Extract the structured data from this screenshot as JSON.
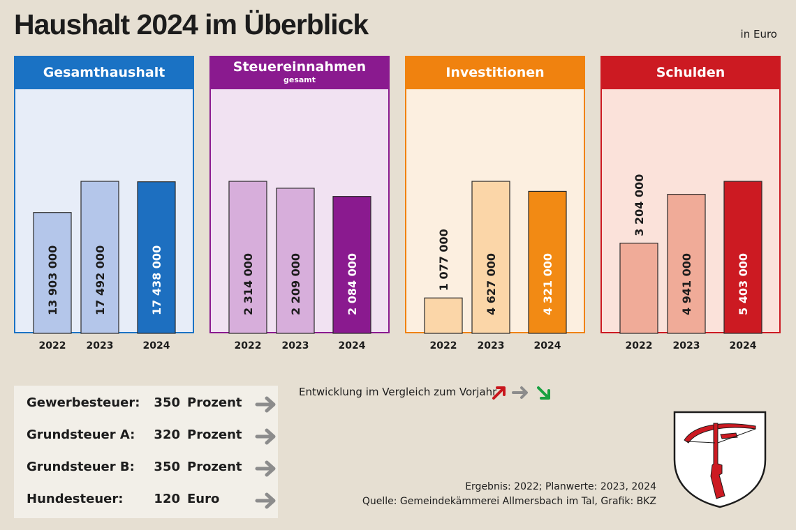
{
  "header": {
    "title": "Haushalt 2024 im Überblick",
    "unit": "in Euro"
  },
  "chart_data": [
    {
      "type": "bar",
      "title": "Gesamthaushalt",
      "subtitle": "",
      "categories": [
        "2022",
        "2023",
        "2024"
      ],
      "values": [
        13903000,
        17492000,
        17438000
      ],
      "value_labels": [
        "13 903 000",
        "17 492 000",
        "17 438 000"
      ],
      "colors": {
        "header": "#1a72c4",
        "bg": "#e7edf8",
        "bar_light": "#b4c6ea",
        "bar_dark": "#1d6fc0"
      }
    },
    {
      "type": "bar",
      "title": "Steuereinnahmen",
      "subtitle": "gesamt",
      "categories": [
        "2022",
        "2023",
        "2024"
      ],
      "values": [
        2314000,
        2209000,
        2084000
      ],
      "value_labels": [
        "2 314 000",
        "2 209 000",
        "2 084 000"
      ],
      "colors": {
        "header": "#8a1a8f",
        "bg": "#f1e2f2",
        "bar_light": "#d7aedb",
        "bar_dark": "#8a1a8f"
      }
    },
    {
      "type": "bar",
      "title": "Investitionen",
      "subtitle": "",
      "categories": [
        "2022",
        "2023",
        "2024"
      ],
      "values": [
        1077000,
        4627000,
        4321000
      ],
      "value_labels": [
        "1 077 000",
        "4 627 000",
        "4 321 000"
      ],
      "colors": {
        "header": "#f0820f",
        "bg": "#fcefe0",
        "bar_light": "#fbd6a8",
        "bar_dark": "#f28a14"
      }
    },
    {
      "type": "bar",
      "title": "Schulden",
      "subtitle": "",
      "categories": [
        "2022",
        "2023",
        "2024"
      ],
      "values": [
        3204000,
        4941000,
        5403000
      ],
      "value_labels": [
        "3 204 000",
        "4 941 000",
        "5 403 000"
      ],
      "colors": {
        "header": "#cc1a22",
        "bg": "#fbe2da",
        "bar_light": "#f0ab98",
        "bar_dark": "#cc1a22"
      }
    }
  ],
  "rates": [
    {
      "name": "Gewerbesteuer:",
      "value": "350",
      "unit": "Prozent",
      "trend": "same"
    },
    {
      "name": "Grundsteuer A:",
      "value": "320",
      "unit": "Prozent",
      "trend": "same"
    },
    {
      "name": "Grundsteuer B:",
      "value": "350",
      "unit": "Prozent",
      "trend": "same"
    },
    {
      "name": "Hundesteuer:",
      "value": "120",
      "unit": "Euro",
      "trend": "same"
    }
  ],
  "legend": {
    "text": "Entwicklung im Vergleich zum Vorjahr",
    "arrow_colors": {
      "up": "#c8161d",
      "same": "#8c8c8c",
      "down": "#17a040"
    }
  },
  "notes": {
    "line1": "Ergebnis: 2022; Planwerte: 2023, 2024",
    "line2": "Quelle: Gemeindekämmerei Allmersbach im Tal, Grafik: BKZ"
  },
  "crest": {
    "icon": "crossbow-crest-icon",
    "color": "#cc1a22"
  }
}
